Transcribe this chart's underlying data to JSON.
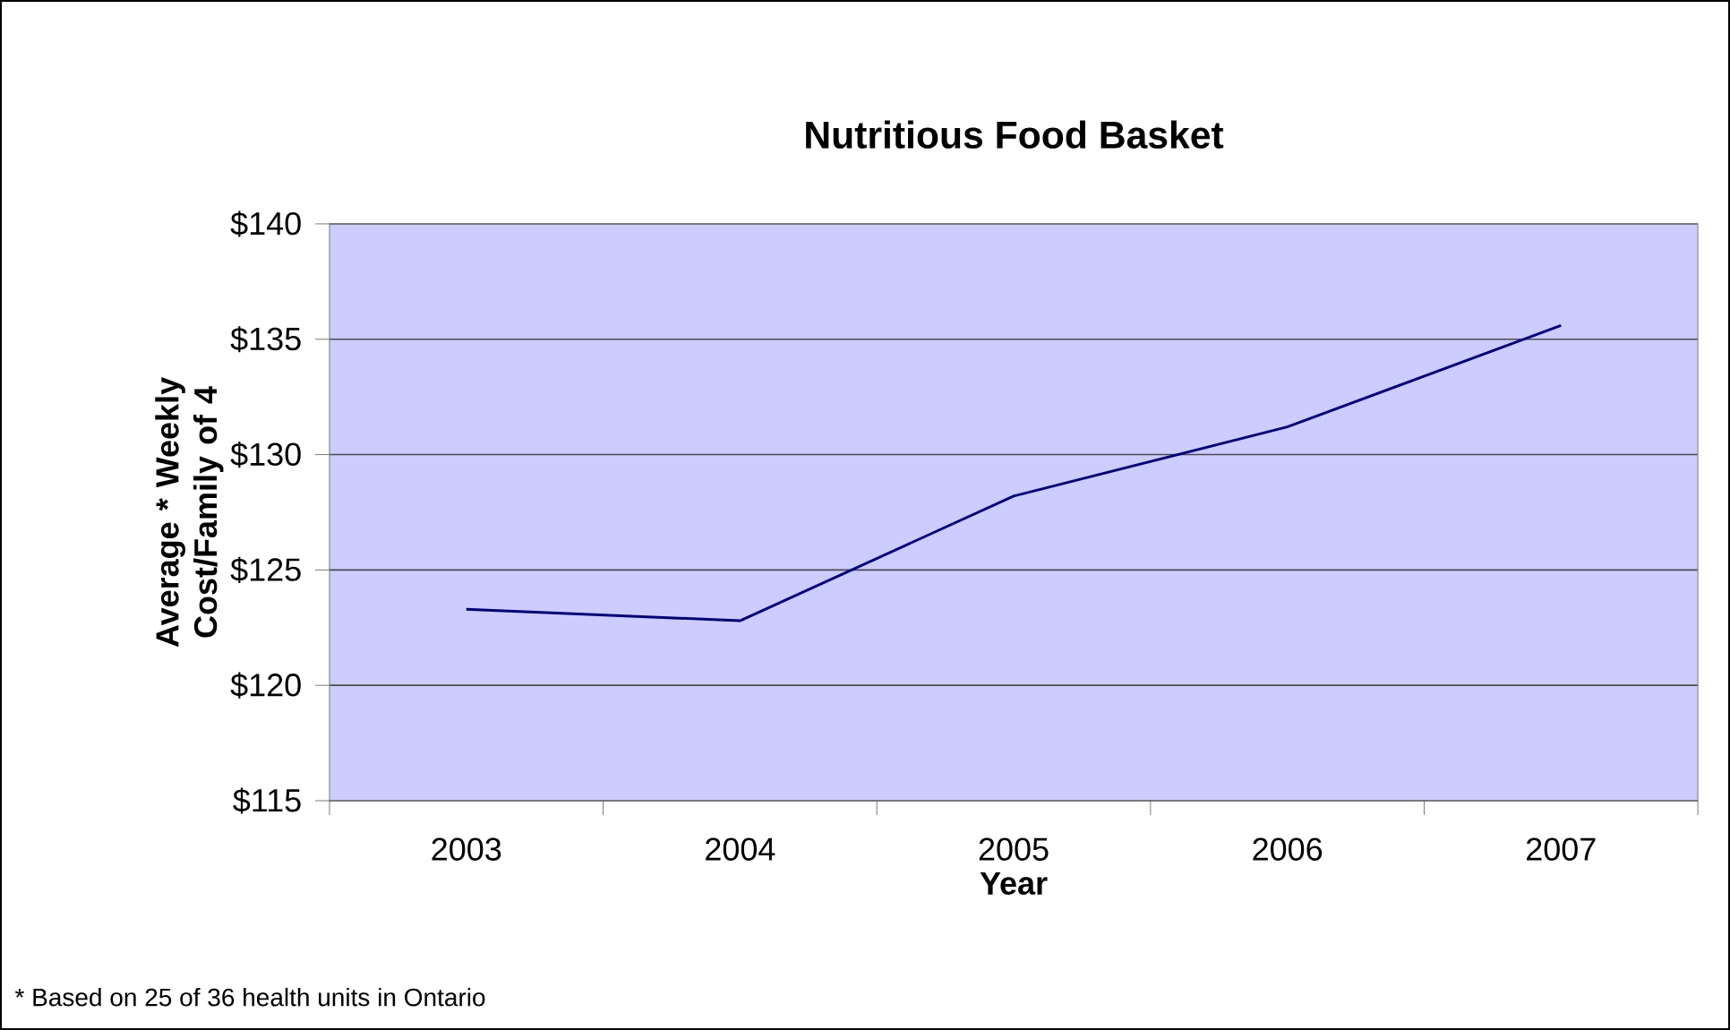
{
  "chart_data": {
    "type": "line",
    "title": "Nutritious Food Basket",
    "xlabel": "Year",
    "ylabel": "Average * Weekly Cost/Family of 4",
    "categories": [
      "2003",
      "2004",
      "2005",
      "2006",
      "2007"
    ],
    "series": [
      {
        "color": "#000080",
        "values": [
          123.3,
          122.8,
          128.2,
          131.2,
          135.6
        ]
      }
    ],
    "ylim": [
      115,
      140
    ],
    "yticks": [
      {
        "value": 115,
        "label": "$115"
      },
      {
        "value": 120,
        "label": "$120"
      },
      {
        "value": 125,
        "label": "$125"
      },
      {
        "value": 130,
        "label": "$130"
      },
      {
        "value": 135,
        "label": "$135"
      },
      {
        "value": 140,
        "label": "$140"
      }
    ],
    "grid": "y",
    "annotations": [
      "* Based on 25 of 36 health units in Ontario"
    ]
  }
}
